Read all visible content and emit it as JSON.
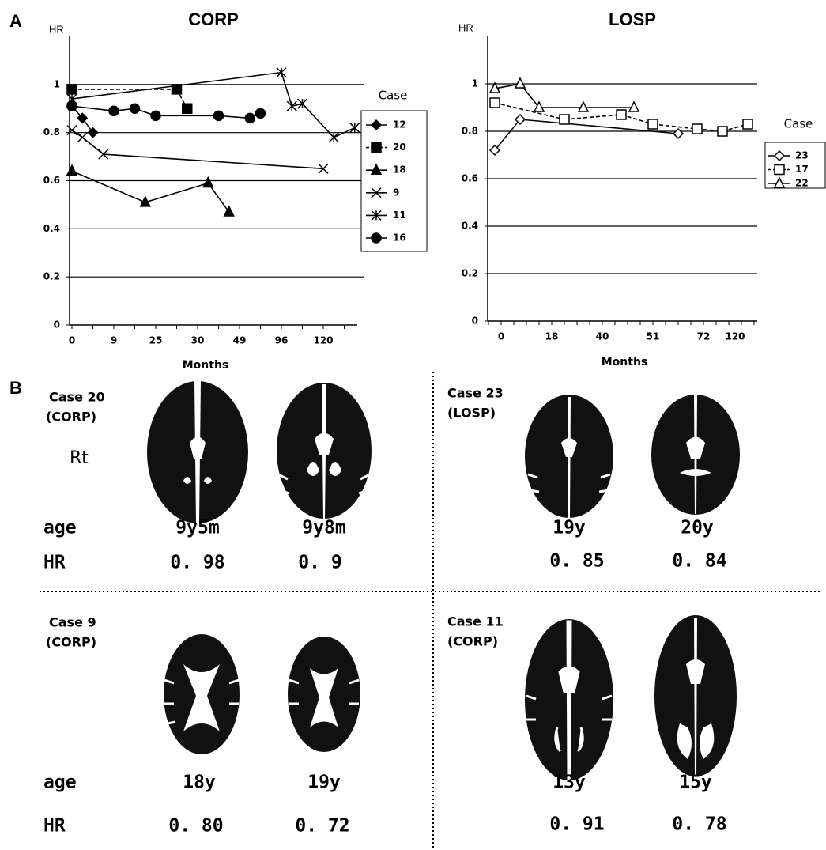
{
  "panel_labels": [
    "A",
    "B"
  ],
  "chart_data": [
    {
      "type": "line",
      "title": "CORP",
      "y_label": "HR",
      "x_label": "Months",
      "legend_title": "Case",
      "categories": [
        "0",
        null,
        null,
        null,
        "9",
        null,
        null,
        null,
        "25",
        null,
        null,
        null,
        "30",
        null,
        null,
        null,
        "49",
        null,
        null,
        null,
        "96",
        null,
        null,
        null,
        "120",
        null,
        null,
        null
      ],
      "ylim": [
        0,
        1.2
      ],
      "yticks": [
        0,
        0.2,
        0.4,
        0.6,
        0.8,
        1
      ],
      "grid": true,
      "series": [
        {
          "name": "12",
          "color": "#000",
          "marker": "diamond",
          "filled": true,
          "dashed": false,
          "values": [
            0.91,
            0.86,
            0.8,
            null,
            null,
            null,
            null,
            null,
            null,
            null,
            null,
            null,
            null,
            null,
            null,
            null,
            null,
            null,
            null,
            null,
            null,
            null,
            null,
            null,
            null,
            null,
            null,
            null
          ]
        },
        {
          "name": "20",
          "color": "#000",
          "marker": "square",
          "filled": true,
          "dashed": true,
          "values": [
            0.98,
            null,
            null,
            null,
            null,
            null,
            null,
            null,
            null,
            null,
            0.98,
            0.9,
            null,
            null,
            null,
            null,
            null,
            null,
            null,
            null,
            null,
            null,
            null,
            null,
            null,
            null,
            null,
            null
          ]
        },
        {
          "name": "18",
          "color": "#000",
          "marker": "triangle",
          "filled": true,
          "dashed": false,
          "values": [
            0.64,
            null,
            null,
            null,
            null,
            null,
            null,
            0.51,
            null,
            null,
            null,
            null,
            null,
            0.59,
            null,
            0.47,
            null,
            null,
            null,
            null,
            null,
            null,
            null,
            null,
            null,
            null,
            null,
            null
          ]
        },
        {
          "name": "9",
          "color": "#000",
          "marker": "x",
          "filled": false,
          "dashed": false,
          "values": [
            0.81,
            0.78,
            null,
            0.71,
            null,
            null,
            null,
            null,
            null,
            null,
            null,
            null,
            null,
            null,
            null,
            null,
            null,
            null,
            null,
            null,
            null,
            null,
            null,
            null,
            0.65,
            null,
            null,
            null
          ]
        },
        {
          "name": "11",
          "color": "#000",
          "marker": "asterisk",
          "filled": false,
          "dashed": false,
          "values": [
            0.94,
            null,
            null,
            null,
            null,
            null,
            null,
            null,
            null,
            null,
            null,
            null,
            null,
            null,
            null,
            null,
            null,
            null,
            null,
            null,
            1.05,
            0.91,
            0.92,
            null,
            null,
            0.78,
            null,
            0.82
          ]
        },
        {
          "name": "16",
          "color": "#000",
          "marker": "circle",
          "filled": true,
          "dashed": false,
          "values": [
            0.91,
            null,
            null,
            null,
            0.89,
            null,
            0.9,
            null,
            0.87,
            null,
            null,
            null,
            null,
            null,
            0.87,
            null,
            null,
            0.86,
            0.88,
            null,
            null,
            null,
            null,
            null,
            null,
            null,
            null,
            null
          ]
        }
      ]
    },
    {
      "type": "line",
      "title": "LOSP",
      "y_label": "HR",
      "x_label": "Months",
      "legend_title": "Case",
      "categories": [
        null,
        null,
        "0",
        null,
        null,
        null,
        null,
        null,
        null,
        null,
        "18",
        null,
        null,
        null,
        null,
        null,
        null,
        null,
        "40",
        null,
        null,
        null,
        null,
        null,
        null,
        null,
        "51",
        null,
        null,
        null,
        null,
        null,
        null,
        null,
        "72",
        null,
        null,
        null,
        null,
        "120",
        null,
        null,
        null
      ],
      "ylim": [
        0,
        1.2
      ],
      "yticks": [
        0,
        0.2,
        0.4,
        0.6,
        0.8,
        1
      ],
      "grid": true,
      "series": [
        {
          "name": "23",
          "color": "#000",
          "marker": "diamond",
          "filled": false,
          "dashed": false,
          "values": [
            null,
            0.72,
            null,
            null,
            null,
            0.85,
            null,
            null,
            null,
            null,
            null,
            null,
            null,
            null,
            null,
            null,
            null,
            null,
            null,
            null,
            null,
            null,
            null,
            null,
            null,
            null,
            null,
            null,
            null,
            null,
            0.79,
            null,
            null,
            null,
            null,
            null,
            null,
            null,
            null,
            null,
            null,
            null,
            null
          ]
        },
        {
          "name": "17",
          "color": "#000",
          "marker": "square",
          "filled": false,
          "dashed": true,
          "values": [
            null,
            0.92,
            null,
            null,
            null,
            null,
            null,
            null,
            null,
            null,
            null,
            null,
            0.85,
            null,
            null,
            null,
            null,
            null,
            null,
            null,
            null,
            0.87,
            null,
            null,
            null,
            null,
            0.83,
            null,
            null,
            null,
            null,
            null,
            null,
            0.81,
            null,
            null,
            null,
            0.8,
            null,
            null,
            null,
            0.83,
            null
          ]
        },
        {
          "name": "22",
          "color": "#000",
          "marker": "triangle",
          "filled": false,
          "dashed": false,
          "values": [
            null,
            0.98,
            null,
            null,
            null,
            1,
            null,
            null,
            0.9,
            null,
            null,
            null,
            null,
            null,
            null,
            0.9,
            null,
            null,
            null,
            null,
            null,
            null,
            null,
            0.9,
            null,
            null,
            null,
            null,
            null,
            null,
            null,
            null,
            null,
            null,
            null,
            null,
            null,
            null,
            null,
            null,
            null,
            null,
            null
          ]
        }
      ]
    }
  ],
  "panel_b": {
    "row_labels": {
      "age": "age",
      "hr": "HR"
    },
    "side_label": "Rt",
    "cases": [
      {
        "case": "Case 20",
        "group": "(CORP)",
        "ages": [
          "9y5m",
          "9y8m"
        ],
        "hr": [
          "0. 98",
          "0. 9"
        ]
      },
      {
        "case": "Case 23",
        "group": "(LOSP)",
        "ages": [
          "19y",
          "20y"
        ],
        "hr": [
          "0. 85",
          "0. 84"
        ]
      },
      {
        "case": "Case 9",
        "group": "(CORP)",
        "ages": [
          "18y",
          "19y"
        ],
        "hr": [
          "0. 80",
          "0. 72"
        ]
      },
      {
        "case": "Case 11",
        "group": "(CORP)",
        "ages": [
          "13y",
          "15y"
        ],
        "hr": [
          "0. 91",
          "0. 78"
        ]
      }
    ]
  }
}
